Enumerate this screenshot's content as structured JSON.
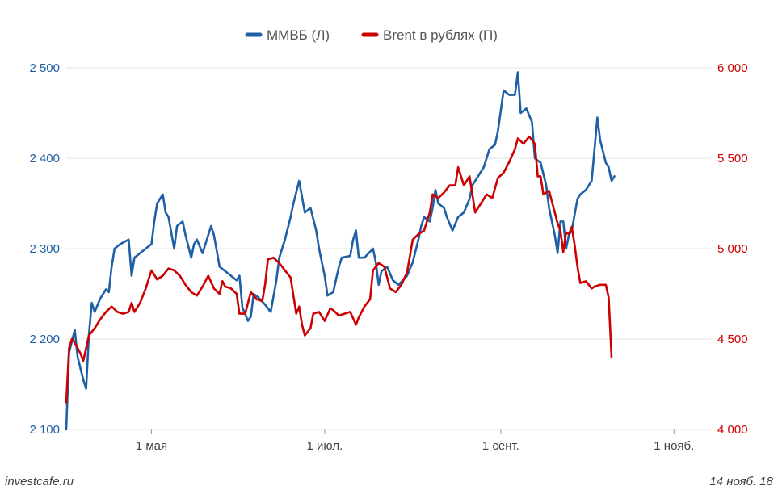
{
  "chart_data": {
    "type": "line",
    "title": "",
    "legend": {
      "position": "top-center"
    },
    "grid": {
      "horizontal": true,
      "vertical": false
    },
    "x_axis": {
      "ticks": [
        {
          "label": "1 мая",
          "day": 30
        },
        {
          "label": "1 июл.",
          "day": 91
        },
        {
          "label": "1 сент.",
          "day": 153
        },
        {
          "label": "1 нояб.",
          "day": 214
        }
      ],
      "range_days": [
        0,
        227
      ]
    },
    "y_left": {
      "ticks": [
        "2 100",
        "2 200",
        "2 300",
        "2 400",
        "2 500"
      ],
      "values": [
        2100,
        2200,
        2300,
        2400,
        2500
      ],
      "range": [
        2100,
        2500
      ]
    },
    "y_right": {
      "ticks": [
        "4 000",
        "4 500",
        "5 000",
        "5 500",
        "6 000"
      ],
      "values": [
        4000,
        4500,
        5000,
        5500,
        6000
      ],
      "range": [
        4000,
        6000
      ]
    },
    "series": [
      {
        "name": "ММВБ (Л)",
        "axis": "left",
        "color": "#1f5fa6",
        "points": [
          [
            0,
            2100
          ],
          [
            1,
            2185
          ],
          [
            3,
            2210
          ],
          [
            4,
            2180
          ],
          [
            6,
            2155
          ],
          [
            7,
            2145
          ],
          [
            8,
            2205
          ],
          [
            9,
            2240
          ],
          [
            10,
            2230
          ],
          [
            12,
            2245
          ],
          [
            14,
            2255
          ],
          [
            15,
            2252
          ],
          [
            16,
            2280
          ],
          [
            17,
            2300
          ],
          [
            19,
            2305
          ],
          [
            22,
            2310
          ],
          [
            23,
            2270
          ],
          [
            24,
            2290
          ],
          [
            26,
            2295
          ],
          [
            28,
            2300
          ],
          [
            30,
            2305
          ],
          [
            31,
            2330
          ],
          [
            32,
            2350
          ],
          [
            34,
            2360
          ],
          [
            35,
            2340
          ],
          [
            36,
            2335
          ],
          [
            38,
            2300
          ],
          [
            39,
            2325
          ],
          [
            41,
            2330
          ],
          [
            42,
            2315
          ],
          [
            44,
            2290
          ],
          [
            45,
            2305
          ],
          [
            46,
            2310
          ],
          [
            48,
            2295
          ],
          [
            49,
            2305
          ],
          [
            51,
            2325
          ],
          [
            52,
            2315
          ],
          [
            54,
            2280
          ],
          [
            56,
            2275
          ],
          [
            58,
            2270
          ],
          [
            60,
            2265
          ],
          [
            61,
            2270
          ],
          [
            62,
            2235
          ],
          [
            64,
            2220
          ],
          [
            65,
            2225
          ],
          [
            66,
            2250
          ],
          [
            68,
            2245
          ],
          [
            70,
            2238
          ],
          [
            72,
            2230
          ],
          [
            74,
            2265
          ],
          [
            75,
            2290
          ],
          [
            77,
            2310
          ],
          [
            79,
            2335
          ],
          [
            80,
            2350
          ],
          [
            82,
            2375
          ],
          [
            84,
            2340
          ],
          [
            86,
            2345
          ],
          [
            88,
            2320
          ],
          [
            89,
            2300
          ],
          [
            91,
            2270
          ],
          [
            92,
            2248
          ],
          [
            94,
            2252
          ],
          [
            96,
            2280
          ],
          [
            97,
            2290
          ],
          [
            100,
            2292
          ],
          [
            101,
            2310
          ],
          [
            102,
            2320
          ],
          [
            103,
            2290
          ],
          [
            105,
            2290
          ],
          [
            108,
            2300
          ],
          [
            109,
            2285
          ],
          [
            110,
            2260
          ],
          [
            111,
            2275
          ],
          [
            113,
            2280
          ],
          [
            115,
            2265
          ],
          [
            117,
            2260
          ],
          [
            120,
            2270
          ],
          [
            122,
            2285
          ],
          [
            124,
            2310
          ],
          [
            125,
            2325
          ],
          [
            126,
            2335
          ],
          [
            128,
            2330
          ],
          [
            129,
            2345
          ],
          [
            130,
            2365
          ],
          [
            131,
            2350
          ],
          [
            133,
            2345
          ],
          [
            134,
            2335
          ],
          [
            136,
            2320
          ],
          [
            138,
            2335
          ],
          [
            140,
            2340
          ],
          [
            142,
            2355
          ],
          [
            143,
            2370
          ],
          [
            145,
            2380
          ],
          [
            147,
            2390
          ],
          [
            149,
            2410
          ],
          [
            151,
            2415
          ],
          [
            152,
            2430
          ],
          [
            154,
            2475
          ],
          [
            156,
            2470
          ],
          [
            158,
            2470
          ],
          [
            159,
            2495
          ],
          [
            160,
            2450
          ],
          [
            162,
            2455
          ],
          [
            164,
            2440
          ],
          [
            165,
            2400
          ],
          [
            167,
            2395
          ],
          [
            169,
            2370
          ],
          [
            170,
            2345
          ],
          [
            172,
            2315
          ],
          [
            173,
            2295
          ],
          [
            174,
            2330
          ],
          [
            175,
            2330
          ],
          [
            176,
            2300
          ],
          [
            177,
            2315
          ],
          [
            178,
            2320
          ],
          [
            180,
            2355
          ],
          [
            181,
            2360
          ],
          [
            183,
            2365
          ],
          [
            185,
            2375
          ],
          [
            186,
            2410
          ],
          [
            187,
            2445
          ],
          [
            188,
            2420
          ],
          [
            190,
            2395
          ],
          [
            191,
            2390
          ],
          [
            192,
            2375
          ],
          [
            193,
            2380
          ]
        ]
      },
      {
        "name": "Brent в рублях (П)",
        "axis": "right",
        "color": "#cc0000",
        "points": [
          [
            0,
            4150
          ],
          [
            1,
            4450
          ],
          [
            2,
            4500
          ],
          [
            3,
            4480
          ],
          [
            5,
            4420
          ],
          [
            6,
            4380
          ],
          [
            7,
            4450
          ],
          [
            8,
            4520
          ],
          [
            10,
            4560
          ],
          [
            12,
            4610
          ],
          [
            14,
            4650
          ],
          [
            16,
            4680
          ],
          [
            18,
            4650
          ],
          [
            20,
            4640
          ],
          [
            22,
            4650
          ],
          [
            23,
            4700
          ],
          [
            24,
            4650
          ],
          [
            26,
            4700
          ],
          [
            28,
            4780
          ],
          [
            30,
            4880
          ],
          [
            32,
            4830
          ],
          [
            34,
            4850
          ],
          [
            36,
            4890
          ],
          [
            38,
            4880
          ],
          [
            40,
            4850
          ],
          [
            42,
            4800
          ],
          [
            44,
            4760
          ],
          [
            46,
            4740
          ],
          [
            48,
            4790
          ],
          [
            50,
            4850
          ],
          [
            52,
            4780
          ],
          [
            54,
            4750
          ],
          [
            55,
            4820
          ],
          [
            56,
            4790
          ],
          [
            58,
            4780
          ],
          [
            60,
            4750
          ],
          [
            61,
            4640
          ],
          [
            63,
            4640
          ],
          [
            65,
            4760
          ],
          [
            67,
            4720
          ],
          [
            69,
            4710
          ],
          [
            70,
            4800
          ],
          [
            71,
            4940
          ],
          [
            73,
            4950
          ],
          [
            75,
            4920
          ],
          [
            77,
            4880
          ],
          [
            79,
            4840
          ],
          [
            81,
            4640
          ],
          [
            82,
            4680
          ],
          [
            83,
            4580
          ],
          [
            84,
            4520
          ],
          [
            86,
            4560
          ],
          [
            87,
            4640
          ],
          [
            89,
            4650
          ],
          [
            91,
            4600
          ],
          [
            93,
            4670
          ],
          [
            94,
            4660
          ],
          [
            96,
            4630
          ],
          [
            98,
            4640
          ],
          [
            100,
            4650
          ],
          [
            102,
            4580
          ],
          [
            103,
            4620
          ],
          [
            105,
            4680
          ],
          [
            107,
            4720
          ],
          [
            108,
            4880
          ],
          [
            110,
            4920
          ],
          [
            112,
            4900
          ],
          [
            114,
            4780
          ],
          [
            116,
            4760
          ],
          [
            118,
            4800
          ],
          [
            120,
            4870
          ],
          [
            122,
            5050
          ],
          [
            124,
            5080
          ],
          [
            126,
            5100
          ],
          [
            128,
            5200
          ],
          [
            129,
            5300
          ],
          [
            131,
            5280
          ],
          [
            133,
            5310
          ],
          [
            135,
            5350
          ],
          [
            137,
            5350
          ],
          [
            138,
            5450
          ],
          [
            140,
            5350
          ],
          [
            142,
            5400
          ],
          [
            144,
            5200
          ],
          [
            146,
            5250
          ],
          [
            148,
            5300
          ],
          [
            150,
            5280
          ],
          [
            152,
            5390
          ],
          [
            154,
            5420
          ],
          [
            156,
            5480
          ],
          [
            158,
            5550
          ],
          [
            159,
            5610
          ],
          [
            161,
            5580
          ],
          [
            163,
            5620
          ],
          [
            165,
            5580
          ],
          [
            166,
            5400
          ],
          [
            167,
            5400
          ],
          [
            168,
            5300
          ],
          [
            170,
            5320
          ],
          [
            172,
            5200
          ],
          [
            173,
            5140
          ],
          [
            174,
            5100
          ],
          [
            175,
            4980
          ],
          [
            176,
            5090
          ],
          [
            177,
            5080
          ],
          [
            178,
            5120
          ],
          [
            179,
            5020
          ],
          [
            180,
            4900
          ],
          [
            181,
            4810
          ],
          [
            183,
            4820
          ],
          [
            185,
            4780
          ],
          [
            186,
            4790
          ],
          [
            188,
            4800
          ],
          [
            190,
            4800
          ],
          [
            191,
            4730
          ],
          [
            192,
            4400
          ]
        ]
      }
    ]
  },
  "footer": {
    "source": "investcafe.ru",
    "date": "14 нояб. 18"
  }
}
